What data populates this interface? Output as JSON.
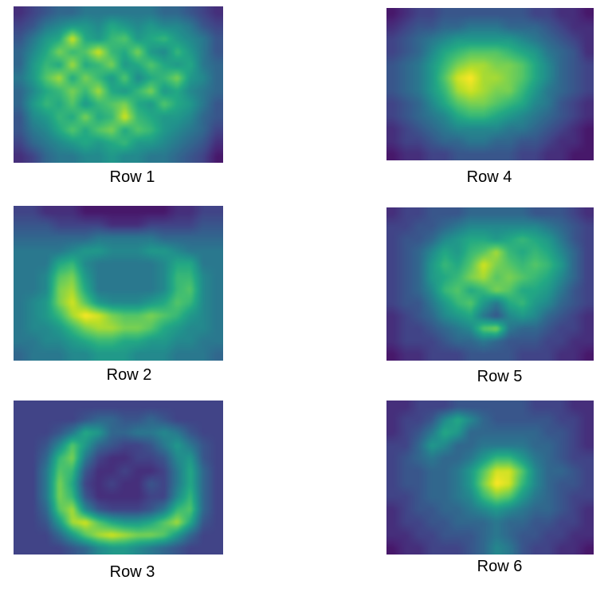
{
  "figure": {
    "background": "#ffffff",
    "caption_color": "#000000"
  },
  "colors": {
    "viridis_stops": [
      "#440154",
      "#482475",
      "#414487",
      "#355f8d",
      "#2a788e",
      "#21918c",
      "#22a884",
      "#44bf70",
      "#7ad151",
      "#bddf26",
      "#fde725"
    ]
  },
  "chart_data": [
    {
      "type": "heatmap",
      "title": "Row 1",
      "colormap": "viridis",
      "value_range": [
        0,
        1
      ],
      "encoding": "each character is a hex digit 0-f; intensity = digit/15",
      "grid_cols": 16,
      "grid_rows": 12,
      "grid": [
        "2345566666655432",
        "3467887987877643",
        "4689e98ab89a8764",
        "579cabea9c87a864",
        "58a9d9ac89b98965",
        "68bd9ca8b79ac875",
        "579acad98ac89765",
        "58a9b8abc98b9864",
        "478a9c9aea988754",
        "4679b9bc9ba87653",
        "35678989a8876542",
        "2356677877665431"
      ]
    },
    {
      "type": "heatmap",
      "title": "Row 2",
      "colormap": "viridis",
      "value_range": [
        0,
        1
      ],
      "encoding": "each character is a hex digit 0-f; intensity = digit/15",
      "grid_cols": 16,
      "grid_rows": 12,
      "grid": [
        "3322211111112233",
        "4443333222333344",
        "5555556666655555",
        "6666788777887666",
        "6669a76666679966",
        "667bc8666667aa76",
        "667cd9666667ab76",
        "678ceb877789ba76",
        "678adfecbbcba876",
        "6778acddccb98776",
        "667789aa99887766",
        "5666778887776665"
      ]
    },
    {
      "type": "heatmap",
      "title": "Row 3",
      "colormap": "viridis",
      "value_range": [
        0,
        1
      ],
      "encoding": "each character is a hex digit 0-f; intensity = digit/15",
      "grid_cols": 16,
      "grid_rows": 12,
      "grid": [
        "3333333333333333",
        "3333345544543333",
        "3334698556676433",
        "3347b85433468643",
        "335ac63223347843",
        "336ba42232236953",
        "336c932322436953",
        "336ca42222337a53",
        "335bd7433346ab53",
        "3348deb9889bd943",
        "33358bdedccb8533",
        "3333457887654333"
      ]
    },
    {
      "type": "heatmap",
      "title": "Row 4",
      "colormap": "viridis",
      "value_range": [
        0,
        1
      ],
      "encoding": "each character is a hex digit 0-f; intensity = digit/15",
      "grid_cols": 16,
      "grid_rows": 12,
      "grid": [
        "1233444444433221",
        "2344556665554322",
        "3456788888765432",
        "34579abbba986542",
        "4568acddccb97543",
        "4568befddcb97543",
        "4568adedcca86543",
        "34579bccba976432",
        "345679aa98765432",
        "2345677776654321",
        "2334556655443221",
        "1223344444332211"
      ]
    },
    {
      "type": "heatmap",
      "title": "Row 5",
      "colormap": "viridis",
      "value_range": [
        0,
        1
      ],
      "encoding": "each character is a hex digit 0-f; intensity = digit/15",
      "grid_cols": 16,
      "grid_rows": 12,
      "grid": [
        "2334445555544432",
        "3344567777776543",
        "3445789989a98643",
        "345798abda9a9753",
        "3458a9becbaba853",
        "34589acdbcba9753",
        "3457ab9acb998643",
        "34468ab869a87543",
        "2345789647875432",
        "2334567bc6554332",
        "2333455654443322",
        "1223334444333221"
      ]
    },
    {
      "type": "heatmap",
      "title": "Row 6",
      "colormap": "viridis",
      "value_range": [
        0,
        1
      ],
      "encoding": "each character is a hex digit 0-f; intensity = digit/15",
      "grid_cols": 16,
      "grid_rows": 12,
      "grid": [
        "2233344444433322",
        "2334797544444332",
        "2346985555554432",
        "3358755666655432",
        "34565568aa865433",
        "3445568beeb75543",
        "3445568cfea75443",
        "3345567acb865433",
        "2344556787655432",
        "2334455565544332",
        "2233444565443322",
        "1223334576433221"
      ]
    }
  ]
}
